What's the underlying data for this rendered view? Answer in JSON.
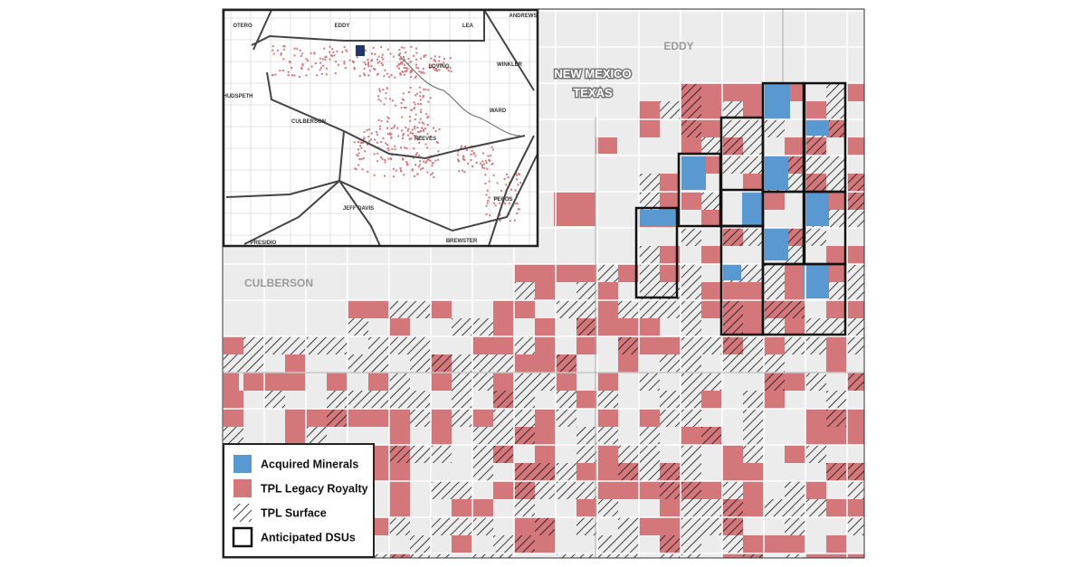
{
  "map": {
    "labels": {
      "eddy": "EDDY",
      "new_mexico": "NEW MEXICO",
      "texas": "TEXAS",
      "culberson": "CULBERSON"
    },
    "inset": {
      "labels": [
        "OTERO",
        "EDDY",
        "LEA",
        "ANDREWS",
        "LOVING",
        "WINKLER",
        "HUDSPETH",
        "CULBERSON",
        "WARD",
        "REEVES",
        "PECOS",
        "JEFF DAVIS",
        "PRESIDIO",
        "BREWSTER"
      ]
    },
    "legend": [
      "Acquired Minerals",
      "TPL Legacy Royalty",
      "TPL Surface",
      "Anticipated DSUs"
    ]
  }
}
